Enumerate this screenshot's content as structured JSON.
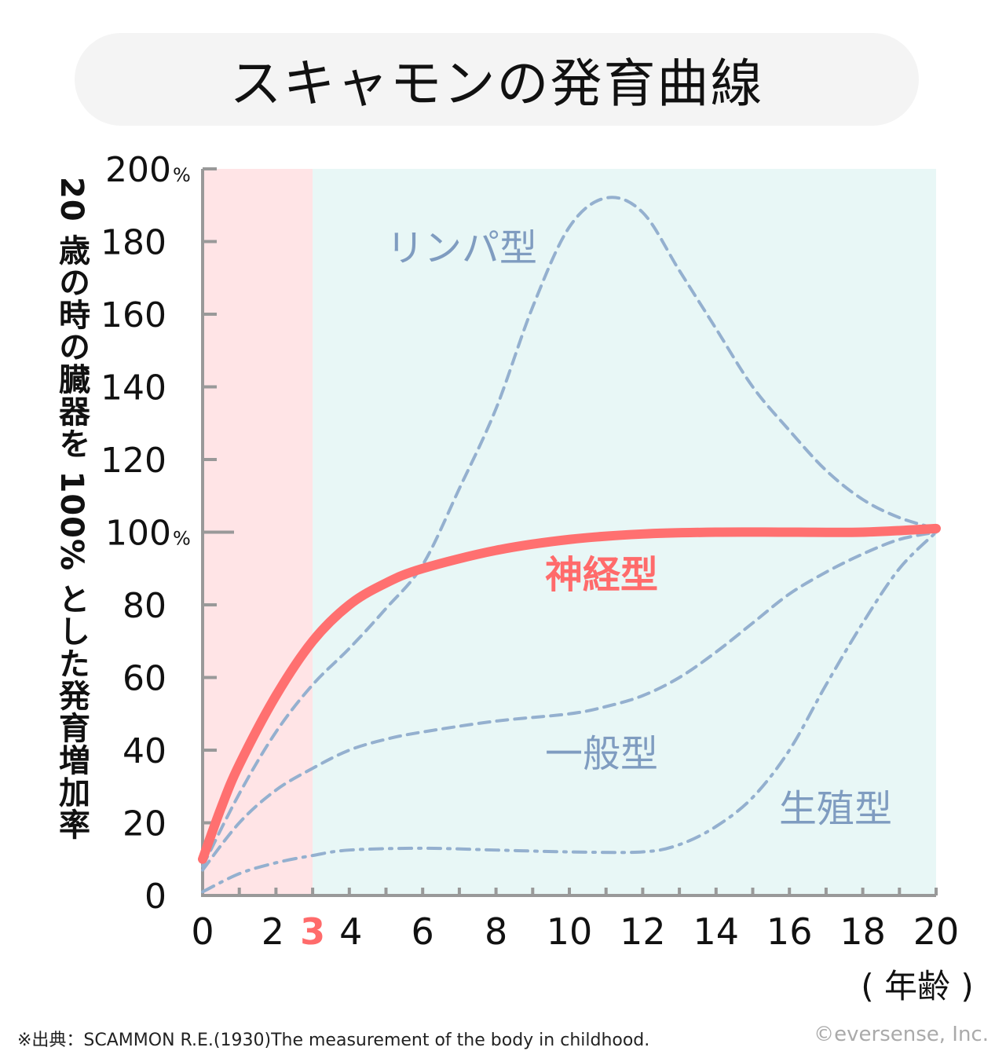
{
  "chart_data": {
    "type": "line",
    "title": "スキャモンの発育曲線",
    "ylabel": "20 歳の時の臓器を 100% とした発育増加率",
    "xlabel": "( 年齢 )",
    "xlim": [
      0,
      20
    ],
    "ylim": [
      0,
      200
    ],
    "x_ticks": [
      0,
      2,
      3,
      4,
      6,
      8,
      10,
      12,
      14,
      16,
      18,
      20
    ],
    "x_tick_labels": [
      "0",
      "2",
      "3",
      "4",
      "6",
      "8",
      "10",
      "12",
      "14",
      "16",
      "18",
      "20"
    ],
    "highlight_tick": "3",
    "y_ticks": [
      0,
      20,
      40,
      60,
      80,
      100,
      120,
      140,
      160,
      180,
      200
    ],
    "y_tick_labels": [
      "0",
      "20",
      "40",
      "60",
      "80",
      "100",
      "120",
      "140",
      "160",
      "180",
      "200"
    ],
    "percent_suffix": "%",
    "regions": [
      {
        "from": 0,
        "to": 3,
        "color": "#ffe4e6"
      },
      {
        "from": 3,
        "to": 20,
        "color": "#e8f7f6"
      }
    ],
    "series": [
      {
        "name": "リンパ型",
        "style": "dashed",
        "color": "#94b0cf",
        "x": [
          0,
          1,
          2,
          3,
          4,
          5,
          6,
          7,
          8,
          9,
          10,
          11,
          12,
          13,
          14,
          15,
          16,
          17,
          18,
          19,
          20
        ],
        "y": [
          8,
          28,
          45,
          58,
          68,
          79,
          91,
          112,
          134,
          162,
          184,
          192,
          188,
          172,
          156,
          140,
          128,
          117,
          109,
          104,
          101
        ]
      },
      {
        "name": "神経型",
        "style": "solid",
        "color": "#ff7070",
        "x": [
          0,
          0.5,
          1,
          2,
          3,
          4,
          5,
          6,
          8,
          10,
          12,
          14,
          16,
          18,
          20
        ],
        "y": [
          10,
          24,
          36,
          55,
          70,
          80,
          86,
          90,
          95,
          98,
          99.5,
          100,
          100,
          100,
          101
        ]
      },
      {
        "name": "一般型",
        "style": "dashed",
        "color": "#94b0cf",
        "x": [
          0,
          1,
          2,
          3,
          4,
          5,
          6,
          8,
          10,
          11,
          12,
          13,
          14,
          15,
          16,
          17,
          18,
          19,
          20
        ],
        "y": [
          7,
          20,
          29,
          35,
          40,
          43,
          45,
          48,
          50,
          52,
          55,
          60,
          67,
          75,
          83,
          89,
          94,
          98,
          100
        ]
      },
      {
        "name": "生殖型",
        "style": "dashdot",
        "color": "#94b0cf",
        "x": [
          0,
          1,
          2,
          3,
          4,
          6,
          8,
          10,
          12,
          13,
          14,
          15,
          16,
          17,
          18,
          19,
          20
        ],
        "y": [
          1,
          6,
          9,
          11,
          12.5,
          13,
          12.5,
          12,
          12,
          14,
          19,
          27,
          40,
          58,
          75,
          90,
          100
        ]
      }
    ]
  },
  "footer": {
    "source": "※出典：SCAMMON R.E.(1930)The measurement of the body in childhood.",
    "copyright": "©eversense, Inc."
  }
}
